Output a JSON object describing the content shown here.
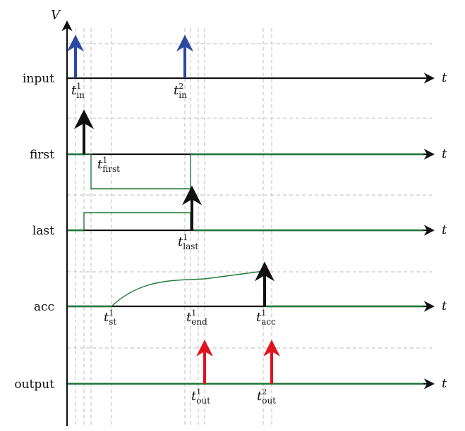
{
  "axis_labels": {
    "v": "V",
    "t": "t"
  },
  "rows": [
    {
      "id": "input",
      "label": "input"
    },
    {
      "id": "first",
      "label": "first"
    },
    {
      "id": "last",
      "label": "last"
    },
    {
      "id": "acc",
      "label": "acc"
    },
    {
      "id": "output",
      "label": "output"
    }
  ],
  "spike_labels": {
    "t_in_1": {
      "base": "t",
      "sub": "in",
      "sup": "1"
    },
    "t_in_2": {
      "base": "t",
      "sub": "in",
      "sup": "2"
    },
    "t_first_1": {
      "base": "t",
      "sub": "first",
      "sup": "1"
    },
    "t_last_1": {
      "base": "t",
      "sub": "last",
      "sup": "1"
    },
    "t_st_1": {
      "base": "t",
      "sub": "st",
      "sup": "1"
    },
    "t_end_1": {
      "base": "t",
      "sub": "end",
      "sup": "1"
    },
    "t_acc_1": {
      "base": "t",
      "sub": "acc",
      "sup": "1"
    },
    "t_out_1": {
      "base": "t",
      "sub": "out",
      "sup": "1"
    },
    "t_out_2": {
      "base": "t",
      "sub": "out",
      "sup": "2"
    }
  },
  "colors": {
    "input_spike": "#2a4aa0",
    "neuron_spike": "#111111",
    "output_spike": "#e0141e",
    "potential_trace": "#1f7a3a"
  }
}
